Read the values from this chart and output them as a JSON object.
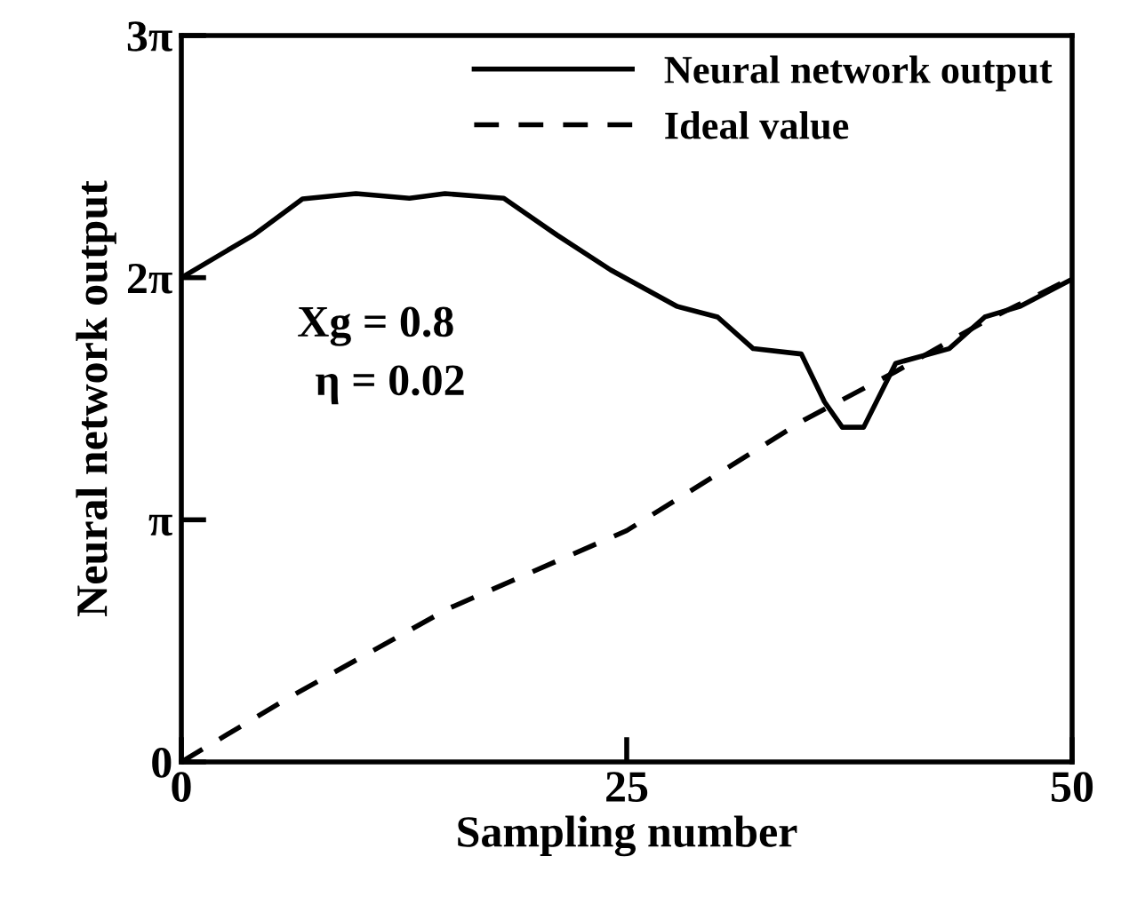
{
  "chart_data": {
    "type": "line",
    "xlabel": "Sampling number",
    "ylabel": "Neural network output",
    "xlim": [
      0,
      50
    ],
    "ylim": [
      0,
      9.42
    ],
    "xticks": [
      0,
      25,
      50
    ],
    "yticks": [
      0,
      {
        "value": 3.14,
        "label": "π"
      },
      {
        "value": 6.28,
        "label": "2π"
      },
      {
        "value": 9.42,
        "label": "3π"
      }
    ],
    "series": [
      {
        "name": "Neural network output",
        "color": "#000000",
        "line_style": "solid",
        "x": [
          0,
          4.1,
          6.8,
          9.8,
          12.8,
          14.8,
          18.1,
          21.1,
          24.1,
          27.8,
          30.1,
          32.1,
          34.8,
          36.1,
          37.1,
          38.3,
          40.1,
          43.1,
          45.1,
          47.1,
          50
        ],
        "values": [
          6.28,
          6.84,
          7.3,
          7.37,
          7.31,
          7.37,
          7.31,
          6.83,
          6.38,
          5.91,
          5.77,
          5.36,
          5.29,
          4.67,
          4.34,
          4.34,
          5.17,
          5.36,
          5.77,
          5.91,
          6.26
        ]
      },
      {
        "name": "Ideal value",
        "color": "#000000",
        "line_style": "dashed",
        "x": [
          0,
          6,
          15,
          25,
          35,
          40,
          45,
          50
        ],
        "values": [
          0,
          0.83,
          1.99,
          3.0,
          4.44,
          5.05,
          5.7,
          6.28
        ]
      }
    ],
    "annotations": [
      "Xg = 0.8",
      "η = 0.02"
    ],
    "legend": "top right",
    "grid": false,
    "marker": "none"
  }
}
